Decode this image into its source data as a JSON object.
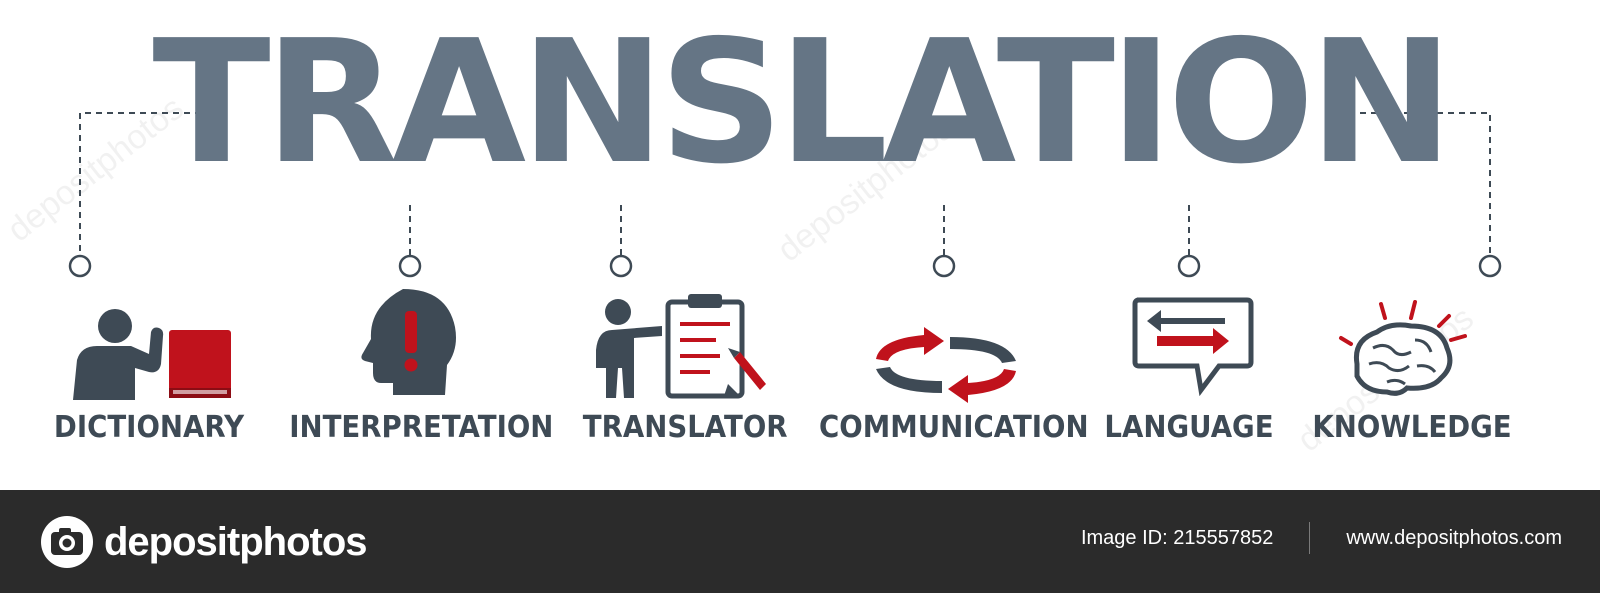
{
  "title": "TRANSLATION",
  "items": [
    {
      "label": "DICTIONARY",
      "icon": "person-with-book-icon"
    },
    {
      "label": "INTERPRETATION",
      "icon": "head-exclamation-icon"
    },
    {
      "label": "TRANSLATOR",
      "icon": "person-clipboard-icon"
    },
    {
      "label": "COMMUNICATION",
      "icon": "exchange-arrows-icon"
    },
    {
      "label": "LANGUAGE",
      "icon": "speech-bubble-arrows-icon"
    },
    {
      "label": "KNOWLEDGE",
      "icon": "brain-icon"
    }
  ],
  "colors": {
    "title": "#657585",
    "icon_dark": "#3e4a55",
    "accent": "#c0121c",
    "footer": "#2b2b2b"
  },
  "footer": {
    "brand": "depositphotos",
    "image_id": "Image ID: 215557852",
    "url": "www.depositphotos.com"
  },
  "watermark": "depositphotos"
}
